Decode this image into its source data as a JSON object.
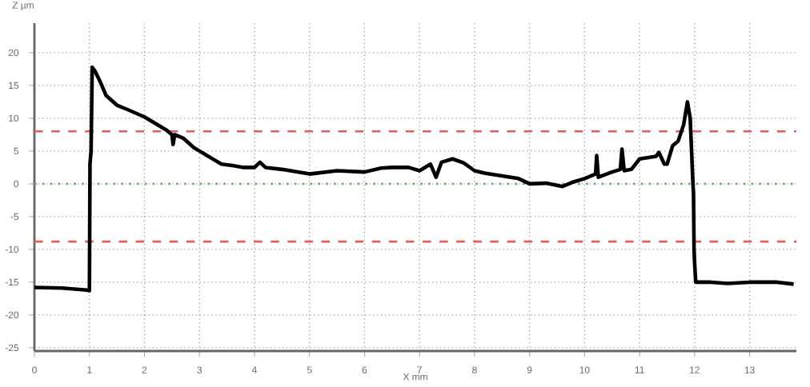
{
  "chart_data": {
    "type": "line",
    "xlabel": "X mm",
    "ylabel": "Z µm",
    "xlim": [
      0,
      13.85
    ],
    "ylim": [
      -25.5,
      24.5
    ],
    "xticks": [
      0,
      1,
      2,
      3,
      4,
      5,
      6,
      7,
      8,
      9,
      10,
      11,
      12,
      13
    ],
    "yticks": [
      -25,
      -20,
      -15,
      -10,
      -5,
      0,
      5,
      10,
      15,
      20
    ],
    "grid": true,
    "marker": "none",
    "line_style": "solid",
    "ref_lines": [
      {
        "axis": "y",
        "value": 8,
        "color": "#e06060",
        "line_style": "dashed"
      },
      {
        "axis": "y",
        "value": -8.8,
        "color": "#e06060",
        "line_style": "dashed"
      },
      {
        "axis": "y",
        "value": 0,
        "color": "#70b070",
        "line_style": "dotted"
      }
    ],
    "series": [
      {
        "color": "#000000",
        "x": [
          0,
          0.5,
          0.95,
          1.0,
          1.01,
          1.03,
          1.05,
          1.1,
          1.2,
          1.3,
          1.5,
          1.7,
          2.0,
          2.2,
          2.4,
          2.5,
          2.52,
          2.55,
          2.7,
          2.9,
          3.0,
          3.2,
          3.4,
          3.6,
          3.8,
          4.0,
          4.1,
          4.2,
          4.5,
          5.0,
          5.5,
          6.0,
          6.3,
          6.5,
          6.8,
          7.0,
          7.2,
          7.3,
          7.4,
          7.6,
          7.8,
          8.0,
          8.2,
          8.5,
          8.8,
          9.0,
          9.3,
          9.6,
          9.8,
          10.0,
          10.2,
          10.22,
          10.25,
          10.5,
          10.65,
          10.68,
          10.72,
          10.85,
          11.0,
          11.3,
          11.35,
          11.45,
          11.5,
          11.6,
          11.7,
          11.8,
          11.87,
          11.92,
          11.97,
          11.98,
          11.99,
          12.0,
          12.02,
          12.3,
          12.6,
          13.0,
          13.5,
          13.8
        ],
        "values": [
          -15.8,
          -15.9,
          -16.2,
          -16.3,
          3,
          5,
          17.8,
          17.2,
          15.5,
          13.5,
          12,
          11.3,
          10.2,
          9.2,
          8.2,
          7.5,
          6,
          7.5,
          7,
          5.5,
          5,
          4,
          3,
          2.8,
          2.5,
          2.5,
          3.3,
          2.5,
          2.2,
          1.5,
          2.0,
          1.8,
          2.4,
          2.5,
          2.5,
          2.0,
          3.0,
          1.0,
          3.3,
          3.8,
          3.2,
          2.0,
          1.6,
          1.2,
          0.8,
          0,
          0.1,
          -0.4,
          0.3,
          0.8,
          1.5,
          4.3,
          1.0,
          1.8,
          2.2,
          5.3,
          2.0,
          2.2,
          3.8,
          4.2,
          4.8,
          3.0,
          3.0,
          5.8,
          6.5,
          9,
          12.5,
          10,
          0,
          -1.5,
          -10,
          -12,
          -15,
          -15.0,
          -15.2,
          -15.0,
          -15.0,
          -15.3
        ]
      }
    ]
  }
}
